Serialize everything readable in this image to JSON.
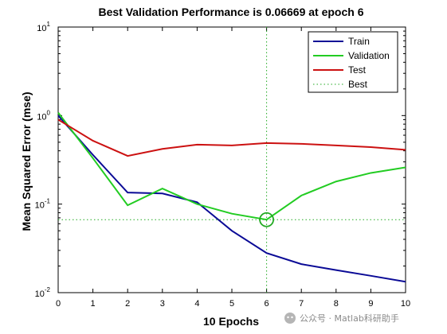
{
  "chart_data": {
    "type": "line",
    "title": "Best Validation Performance is 0.06669 at epoch 6",
    "xlabel": "10 Epochs",
    "ylabel": "Mean Squared Error  (mse)",
    "xlim": [
      0,
      10
    ],
    "ylim": [
      0.01,
      10
    ],
    "yscale": "log",
    "x_ticks": [
      "0",
      "1",
      "2",
      "3",
      "4",
      "5",
      "6",
      "7",
      "8",
      "9",
      "10"
    ],
    "y_ticks": [
      {
        "base": "10",
        "exp": "-2",
        "value": 0.01
      },
      {
        "base": "10",
        "exp": "-1",
        "value": 0.1
      },
      {
        "base": "10",
        "exp": "0",
        "value": 1
      },
      {
        "base": "10",
        "exp": "1",
        "value": 10
      }
    ],
    "legend_position": "top-right",
    "x": [
      0,
      1,
      2,
      3,
      4,
      5,
      6,
      7,
      8,
      9,
      10
    ],
    "series": [
      {
        "name": "Train",
        "color": "#0a0a96",
        "values": [
          1.0,
          0.36,
          0.135,
          0.132,
          0.105,
          0.05,
          0.028,
          0.021,
          0.018,
          0.0155,
          0.0133
        ]
      },
      {
        "name": "Validation",
        "color": "#22cc22",
        "values": [
          1.08,
          0.33,
          0.097,
          0.15,
          0.1,
          0.078,
          0.0667,
          0.125,
          0.18,
          0.225,
          0.26
        ]
      },
      {
        "name": "Test",
        "color": "#cc1111",
        "values": [
          0.9,
          0.52,
          0.35,
          0.42,
          0.47,
          0.46,
          0.49,
          0.48,
          0.46,
          0.44,
          0.41
        ]
      }
    ],
    "best": {
      "name": "Best",
      "epoch": 6,
      "value": 0.06669,
      "color": "#22aa22"
    }
  },
  "watermark": "公众号 · Matlab科研助手"
}
